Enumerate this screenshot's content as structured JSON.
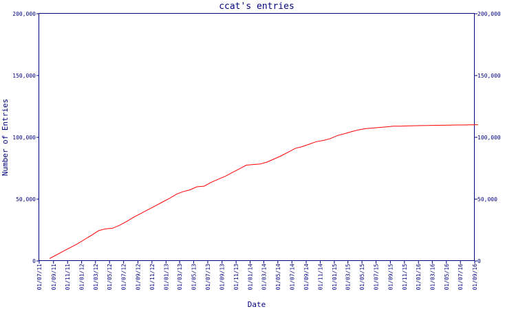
{
  "chart_data": {
    "type": "line",
    "title": "ccat's entries",
    "xlabel": "Date",
    "ylabel": "Number of Entries",
    "ylim": [
      0,
      200000
    ],
    "y_ticks": [
      0,
      50000,
      100000,
      150000,
      200000
    ],
    "y_tick_labels": [
      "0",
      "50,000",
      "100,000",
      "150,000",
      "200,000"
    ],
    "x_ticks": [
      "2011-07-01",
      "2011-09-01",
      "2011-11-01",
      "2012-01-01",
      "2012-03-01",
      "2012-05-01",
      "2012-07-01",
      "2012-09-01",
      "2012-11-01",
      "2013-01-01",
      "2013-03-01",
      "2013-05-01",
      "2013-07-01",
      "2013-09-01",
      "2013-11-01",
      "2014-01-01",
      "2014-03-01",
      "2014-05-01",
      "2014-07-01",
      "2014-09-01",
      "2014-11-01",
      "2015-01-01",
      "2015-03-01",
      "2015-05-01",
      "2015-07-01",
      "2015-09-01",
      "2015-11-01",
      "2016-01-01",
      "2016-03-01",
      "2016-05-01",
      "2016-07-01",
      "2016-09-01"
    ],
    "x_tick_labels": [
      "01/07/11",
      "01/09/11",
      "01/11/11",
      "01/01/12",
      "01/03/12",
      "01/05/12",
      "01/07/12",
      "01/09/12",
      "01/11/12",
      "01/01/13",
      "01/03/13",
      "01/05/13",
      "01/07/13",
      "01/09/13",
      "01/11/13",
      "01/01/14",
      "01/03/14",
      "01/05/14",
      "01/07/14",
      "01/09/14",
      "01/11/14",
      "01/01/15",
      "01/03/15",
      "01/05/15",
      "01/07/15",
      "01/09/15",
      "01/11/15",
      "01/01/16",
      "01/03/16",
      "01/05/16",
      "01/07/16",
      "01/09/16"
    ],
    "grid": false,
    "series": [
      {
        "color": "#ff0000",
        "x": [
          "2011-08-15",
          "2011-09-15",
          "2011-10-15",
          "2011-11-15",
          "2011-12-15",
          "2012-01-15",
          "2012-02-15",
          "2012-03-15",
          "2012-04-15",
          "2012-05-15",
          "2012-06-15",
          "2012-07-15",
          "2012-08-15",
          "2012-09-15",
          "2012-10-15",
          "2012-11-15",
          "2012-12-15",
          "2013-01-15",
          "2013-02-15",
          "2013-03-15",
          "2013-04-15",
          "2013-05-15",
          "2013-06-15",
          "2013-07-15",
          "2013-08-15",
          "2013-09-15",
          "2013-10-15",
          "2013-11-15",
          "2013-12-15",
          "2014-01-15",
          "2014-02-15",
          "2014-03-15",
          "2014-04-15",
          "2014-05-15",
          "2014-06-15",
          "2014-07-15",
          "2014-08-15",
          "2014-09-15",
          "2014-10-15",
          "2014-11-15",
          "2014-12-15",
          "2015-01-15",
          "2015-02-15",
          "2015-03-15",
          "2015-04-15",
          "2015-05-15",
          "2015-06-15",
          "2015-07-15",
          "2015-08-15",
          "2015-09-15",
          "2015-10-15",
          "2015-11-15",
          "2015-12-15",
          "2016-01-15",
          "2016-02-15",
          "2016-03-15",
          "2016-04-15",
          "2016-05-15",
          "2016-06-15",
          "2016-07-15",
          "2016-08-15",
          "2016-09-15"
        ],
        "values": [
          2000,
          5000,
          8000,
          11000,
          14000,
          17500,
          21000,
          24500,
          26000,
          26500,
          29000,
          32000,
          35500,
          38500,
          41500,
          44500,
          47500,
          50500,
          54000,
          56000,
          57500,
          60000,
          60500,
          63500,
          66000,
          68500,
          71500,
          74500,
          77500,
          78000,
          78500,
          80000,
          82500,
          85000,
          88000,
          91000,
          92500,
          94500,
          96500,
          97500,
          99000,
          101500,
          103000,
          104500,
          106000,
          107000,
          107500,
          108000,
          108500,
          109000,
          109000,
          109200,
          109400,
          109500,
          109600,
          109700,
          109800,
          109900,
          110000,
          110000,
          110100,
          110200
        ]
      }
    ]
  }
}
